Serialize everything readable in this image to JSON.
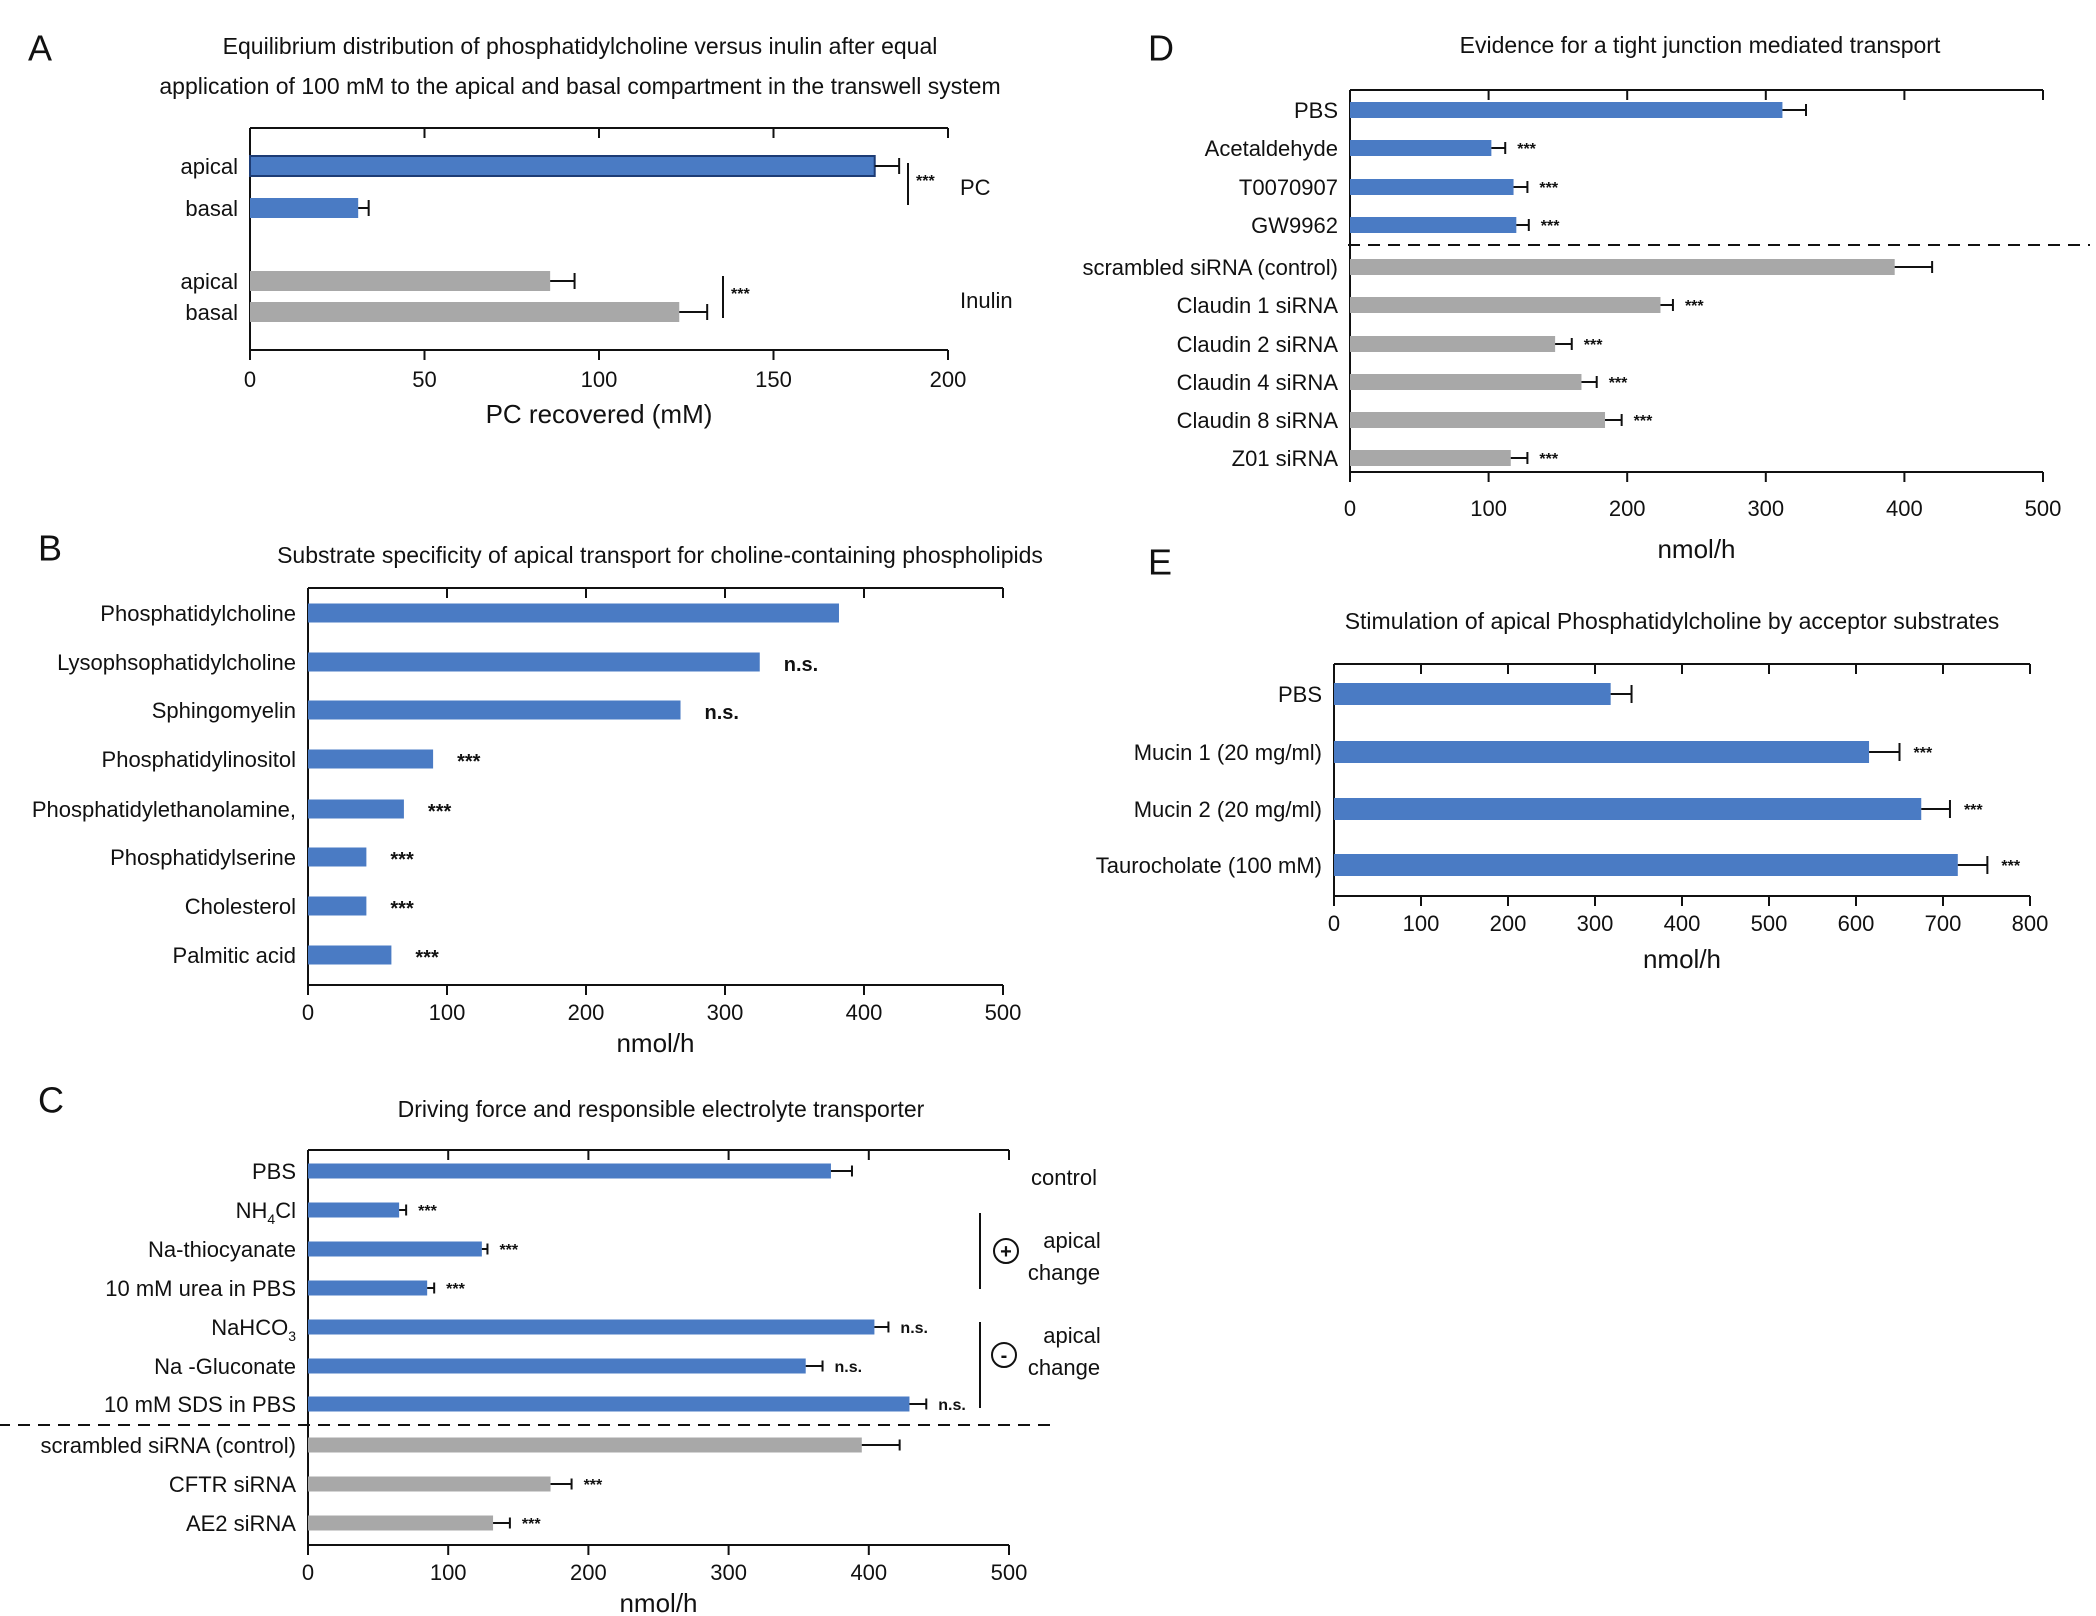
{
  "colors": {
    "blue": "#4a7bc4",
    "gray": "#a8a8a8",
    "ink": "#111111"
  },
  "chart_data": [
    {
      "id": "A",
      "type": "bar",
      "panel_letter": "A",
      "title_lines": [
        "Equilibrium distribution of phosphatidylcholine versus inulin after equal",
        "application of 100 mM to the apical and basal compartment in the transwell system"
      ],
      "xlabel": "PC recovered (mM)",
      "xlim": [
        0,
        200
      ],
      "xticks": [
        "0",
        "50",
        "100",
        "150",
        "200"
      ],
      "bars": [
        {
          "label": "apical",
          "value": 179,
          "error": 7,
          "color": "blue",
          "group": "PC"
        },
        {
          "label": "basal",
          "value": 31,
          "error": 3,
          "color": "blue",
          "group": "PC"
        },
        {
          "label": "apical",
          "value": 86,
          "error": 7,
          "color": "gray",
          "group": "Inulin"
        },
        {
          "label": "basal",
          "value": 123,
          "error": 8,
          "color": "gray",
          "group": "Inulin"
        }
      ],
      "brackets": [
        {
          "from": 0,
          "to": 1,
          "sig": "***",
          "group_label": "PC"
        },
        {
          "from": 2,
          "to": 3,
          "sig": "***",
          "group_label": "Inulin"
        }
      ]
    },
    {
      "id": "B",
      "type": "bar",
      "panel_letter": "B",
      "title_lines": [
        "Substrate specificity of apical transport for choline-containing phospholipids"
      ],
      "xlabel": "nmol/h",
      "xlim": [
        0,
        500
      ],
      "xticks": [
        "0",
        "100",
        "200",
        "300",
        "400",
        "500"
      ],
      "bars": [
        {
          "label": "Phosphatidylcholine",
          "value": 382,
          "sig": "",
          "color": "blue"
        },
        {
          "label": "Lysophsophatidylcholine",
          "value": 325,
          "sig": "n.s.",
          "color": "blue"
        },
        {
          "label": "Sphingomyelin",
          "value": 268,
          "sig": "n.s.",
          "color": "blue"
        },
        {
          "label": "Phosphatidylinositol",
          "value": 90,
          "sig": "***",
          "color": "blue"
        },
        {
          "label": "Phosphatidylethanolamine,",
          "value": 69,
          "sig": "***",
          "color": "blue"
        },
        {
          "label": "Phosphatidylserine",
          "value": 42,
          "sig": "***",
          "color": "blue"
        },
        {
          "label": "Cholesterol",
          "value": 42,
          "sig": "***",
          "color": "blue"
        },
        {
          "label": "Palmitic acid",
          "value": 60,
          "sig": "***",
          "color": "blue"
        }
      ]
    },
    {
      "id": "C",
      "type": "bar",
      "panel_letter": "C",
      "title_lines": [
        "Driving force and responsible electrolyte transporter"
      ],
      "xlabel": "nmol/h",
      "xlim": [
        0,
        500
      ],
      "xticks": [
        "0",
        "100",
        "200",
        "300",
        "400",
        "500"
      ],
      "bars": [
        {
          "label": "PBS",
          "value": 373,
          "error": 15,
          "sig": "",
          "color": "blue"
        },
        {
          "label": "NH",
          "sub": "4",
          "suffix": "Cl",
          "value": 65,
          "error": 5,
          "sig": "***",
          "color": "blue"
        },
        {
          "label": "Na-thiocyanate",
          "value": 124,
          "error": 4,
          "sig": "***",
          "color": "blue"
        },
        {
          "label": "10 mM urea in PBS",
          "value": 85,
          "error": 5,
          "sig": "***",
          "color": "blue"
        },
        {
          "label": "NaHCO",
          "sub": "3",
          "suffix": "",
          "value": 404,
          "error": 10,
          "sig": "n.s.",
          "color": "blue"
        },
        {
          "label": "Na -Gluconate",
          "value": 355,
          "error": 12,
          "sig": "n.s.",
          "color": "blue"
        },
        {
          "label": "10 mM SDS in PBS",
          "value": 429,
          "error": 12,
          "sig": "n.s.",
          "color": "blue"
        },
        {
          "label": "scrambled siRNA (control)",
          "value": 395,
          "error": 27,
          "sig": "",
          "color": "gray"
        },
        {
          "label": "CFTR siRNA",
          "value": 173,
          "error": 15,
          "sig": "***",
          "color": "gray"
        },
        {
          "label": "AE2 siRNA",
          "value": 132,
          "error": 12,
          "sig": "***",
          "color": "gray"
        }
      ],
      "group_labels": {
        "control": "control",
        "plus_symbol": "+",
        "minus_symbol": "-",
        "apical": "apical",
        "change": "change"
      }
    },
    {
      "id": "D",
      "type": "bar",
      "panel_letter": "D",
      "title_lines": [
        "Evidence for a tight junction mediated transport"
      ],
      "xlabel": "nmol/h",
      "xlim": [
        0,
        500
      ],
      "xticks": [
        "0",
        "100",
        "200",
        "300",
        "400",
        "500"
      ],
      "bars": [
        {
          "label": "PBS",
          "value": 312,
          "error": 17,
          "sig": "",
          "color": "blue"
        },
        {
          "label": "Acetaldehyde",
          "value": 102,
          "error": 10,
          "sig": "***",
          "color": "blue"
        },
        {
          "label": "T0070907",
          "value": 118,
          "error": 10,
          "sig": "***",
          "color": "blue"
        },
        {
          "label": "GW9962",
          "value": 120,
          "error": 9,
          "sig": "***",
          "color": "blue"
        },
        {
          "label": "scrambled siRNA (control)",
          "value": 393,
          "error": 27,
          "sig": "",
          "color": "gray"
        },
        {
          "label": "Claudin 1 siRNA",
          "value": 224,
          "error": 9,
          "sig": "***",
          "color": "gray"
        },
        {
          "label": "Claudin 2 siRNA",
          "value": 148,
          "error": 12,
          "sig": "***",
          "color": "gray"
        },
        {
          "label": "Claudin 4 siRNA",
          "value": 167,
          "error": 11,
          "sig": "***",
          "color": "gray"
        },
        {
          "label": "Claudin 8 siRNA",
          "value": 184,
          "error": 12,
          "sig": "***",
          "color": "gray"
        },
        {
          "label": "Z01 siRNA",
          "value": 116,
          "error": 12,
          "sig": "***",
          "color": "gray"
        }
      ]
    },
    {
      "id": "E",
      "type": "bar",
      "panel_letter": "E",
      "title_lines": [
        "Stimulation of apical Phosphatidylcholine by acceptor substrates"
      ],
      "xlabel": "nmol/h",
      "xlim": [
        0,
        800
      ],
      "xticks": [
        "0",
        "100",
        "200",
        "300",
        "400",
        "500",
        "600",
        "700",
        "800"
      ],
      "bars": [
        {
          "label": "PBS",
          "value": 318,
          "error": 24,
          "sig": "",
          "color": "blue"
        },
        {
          "label": "Mucin 1 (20 mg/ml)",
          "value": 615,
          "error": 35,
          "sig": "***",
          "color": "blue"
        },
        {
          "label": "Mucin 2 (20 mg/ml)",
          "value": 675,
          "error": 33,
          "sig": "***",
          "color": "blue"
        },
        {
          "label": "Taurocholate (100 mM)",
          "value": 717,
          "error": 34,
          "sig": "***",
          "color": "blue"
        }
      ]
    }
  ]
}
